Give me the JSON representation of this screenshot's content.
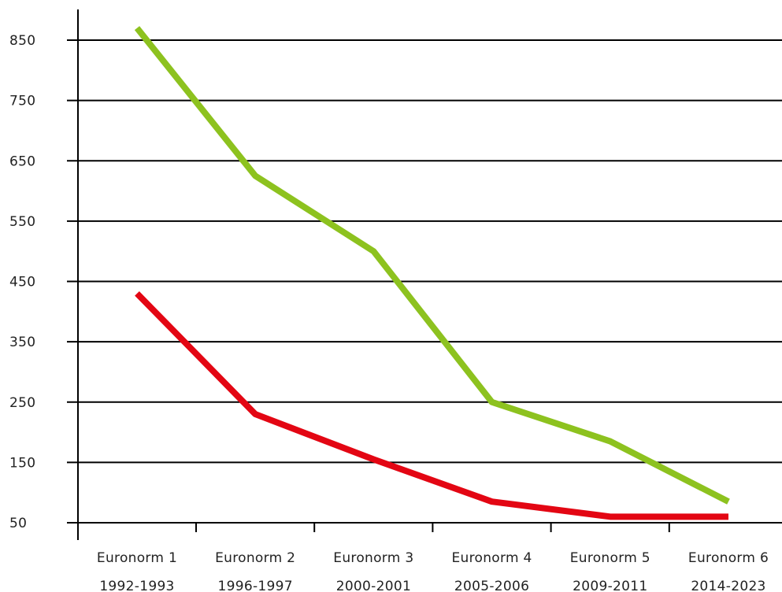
{
  "chart_data": {
    "type": "line",
    "title": "",
    "xlabel": "",
    "ylabel": "",
    "categories": [
      [
        "Euronorm 1",
        "1992-1993"
      ],
      [
        "Euronorm 2",
        "1996-1997"
      ],
      [
        "Euronorm 3",
        "2000-2001"
      ],
      [
        "Euronorm 4",
        "2005-2006"
      ],
      [
        "Euronorm 5",
        "2009-2011"
      ],
      [
        "Euronorm 6",
        "2014-2023"
      ]
    ],
    "yticks": [
      50,
      150,
      250,
      350,
      450,
      550,
      650,
      750,
      850
    ],
    "ylim": [
      50,
      900
    ],
    "grid": true,
    "legend": "none",
    "series": [
      {
        "color": "#8dc21f",
        "values": [
          870,
          625,
          500,
          250,
          185,
          85
        ]
      },
      {
        "color": "#e30613",
        "values": [
          430,
          230,
          155,
          85,
          60,
          60
        ]
      }
    ]
  }
}
